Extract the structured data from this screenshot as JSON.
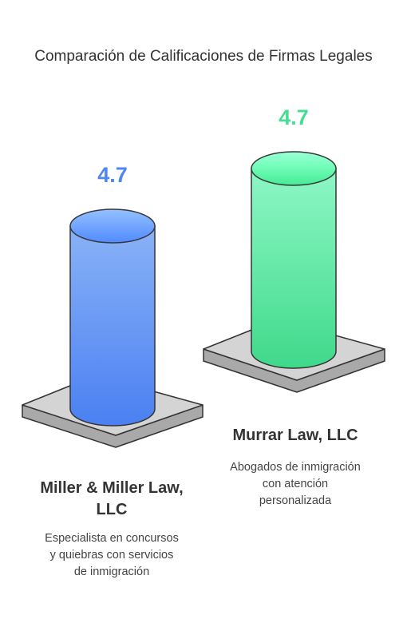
{
  "chart_data": {
    "type": "cylinder",
    "title": "Comparación de Calificaciones de Firmas Legales",
    "categories": [
      "Miller & Miller Law, LLC",
      "Murrar Law, LLC"
    ],
    "descriptions": [
      "Especialista en concursos y quiebras con servicios de inmigración",
      "Abogados de inmigración con atención personalizada"
    ],
    "values": [
      4.7,
      4.7
    ],
    "colors": [
      "#4f86f2",
      "#45dc93"
    ]
  }
}
